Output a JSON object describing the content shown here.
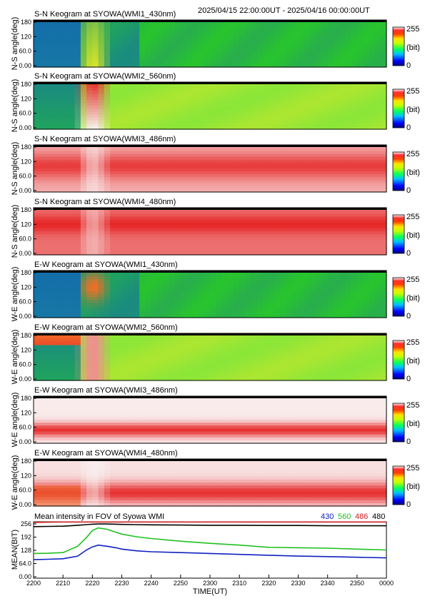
{
  "header": {
    "range_text": "2025/04/15 22:00:00UT - 2025/04/16 00:00:00UT"
  },
  "colorbar": {
    "max_label": "255",
    "unit_label": "(bit)",
    "min_label": "0"
  },
  "panels": [
    {
      "id": "sn-430",
      "title": "S-N Keogram at SYOWA(WMI1_430nm)",
      "ylabel": "N-S angle(deg)",
      "style": "green-blue"
    },
    {
      "id": "sn-560",
      "title": "S-N Keogram at SYOWA(WMI2_560nm)",
      "ylabel": "N-S angle(deg)",
      "style": "green-bright"
    },
    {
      "id": "sn-486",
      "title": "S-N Keogram at SYOWA(WMI3_486nm)",
      "ylabel": "N-S angle(deg)",
      "style": "red-white"
    },
    {
      "id": "sn-480",
      "title": "S-N Keogram at SYOWA(WMI4_480nm)",
      "ylabel": "N-S angle(deg)",
      "style": "red-dense"
    },
    {
      "id": "ew-430",
      "title": "E-W Keogram at SYOWA(WMI1_430nm)",
      "ylabel": "W-E angle(deg)",
      "style": "green-blue-ew"
    },
    {
      "id": "ew-560",
      "title": "E-W Keogram at SYOWA(WMI2_560nm)",
      "ylabel": "W-E angle(deg)",
      "style": "green-bright-ew"
    },
    {
      "id": "ew-486",
      "title": "E-W Keogram at SYOWA(WMI3_486nm)",
      "ylabel": "W-E angle(deg)",
      "style": "white-red-band"
    },
    {
      "id": "ew-480",
      "title": "E-W Keogram at SYOWA(WMI4_480nm)",
      "ylabel": "W-E angle(deg)",
      "style": "red-lower"
    }
  ],
  "panel_yticks": [
    "180",
    "120",
    "60.0",
    "0.00"
  ],
  "mean_panel": {
    "title": "Mean intensity in FOV of Syowa WMI",
    "ylabel": "MEAN(BIT)",
    "yticks": [
      "256",
      "192",
      "128",
      "64.0",
      "0.00"
    ]
  },
  "xaxis": {
    "label": "TIME(UT)",
    "ticks": [
      "2200",
      "2210",
      "2220",
      "2230",
      "2240",
      "2250",
      "2300",
      "2310",
      "2320",
      "2330",
      "2340",
      "2350",
      "0000"
    ]
  },
  "chart_data": {
    "type": "line",
    "title": "Mean intensity in FOV of Syowa WMI",
    "xlabel": "TIME(UT)",
    "ylabel": "MEAN(BIT)",
    "x": [
      "2200",
      "2205",
      "2210",
      "2215",
      "2218",
      "2220",
      "2222",
      "2225",
      "2228",
      "2230",
      "2235",
      "2240",
      "2250",
      "2300",
      "2310",
      "2320",
      "2330",
      "2340",
      "2350",
      "0000"
    ],
    "ylim": [
      0,
      256
    ],
    "series": [
      {
        "name": "430",
        "color": "#1020c0",
        "values": [
          84,
          86,
          88,
          100,
          128,
          142,
          150,
          145,
          138,
          132,
          124,
          120,
          116,
          112,
          108,
          104,
          100,
          98,
          95,
          92
        ]
      },
      {
        "name": "560",
        "color": "#20c020",
        "values": [
          112,
          113,
          116,
          145,
          185,
          216,
          228,
          222,
          208,
          200,
          188,
          180,
          168,
          158,
          150,
          140,
          138,
          136,
          132,
          128
        ]
      },
      {
        "name": "486",
        "color": "#d02020",
        "values": [
          253,
          254,
          255,
          255,
          255,
          255,
          255,
          255,
          255,
          255,
          255,
          255,
          255,
          255,
          255,
          255,
          255,
          255,
          255,
          255
        ]
      },
      {
        "name": "480",
        "color": "#000000",
        "values": [
          234,
          235,
          236,
          240,
          243,
          245,
          246,
          246,
          245,
          244,
          243,
          242,
          241,
          240,
          240,
          239,
          239,
          238,
          238,
          238
        ]
      }
    ]
  }
}
